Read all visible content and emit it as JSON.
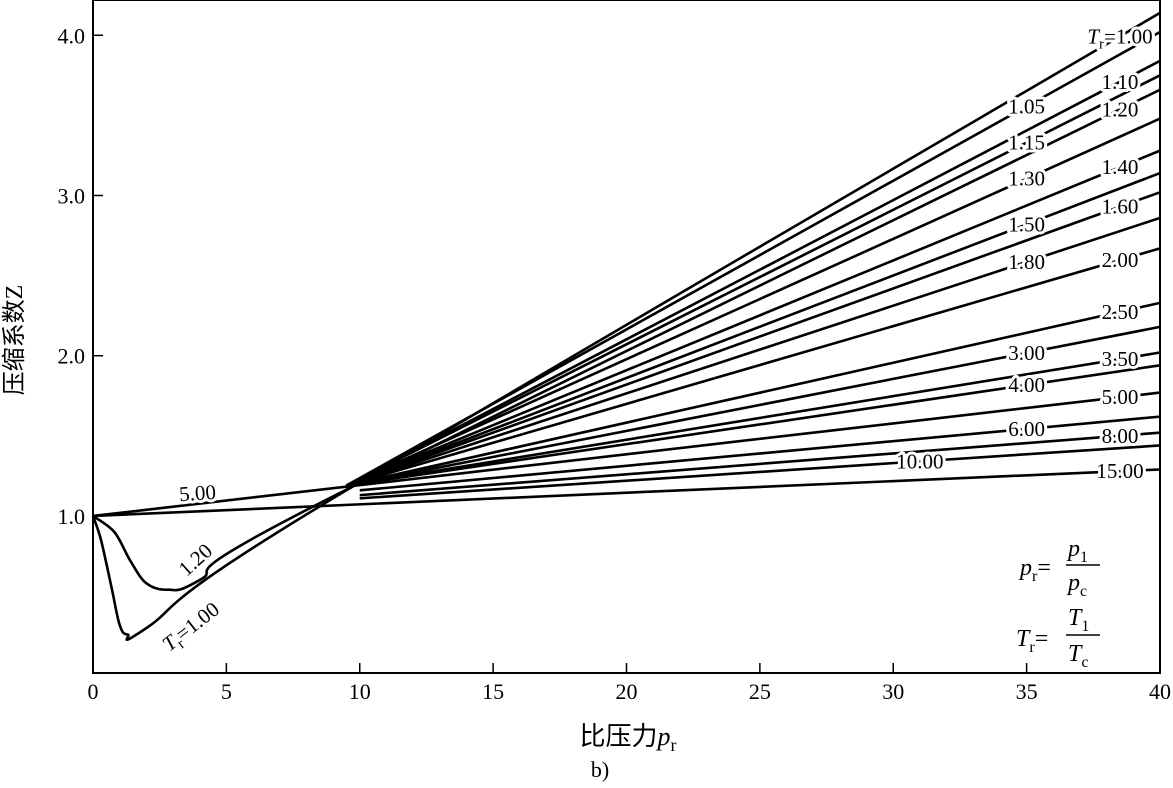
{
  "chart_data": {
    "type": "line",
    "title": "",
    "xlabel": "比压力p_r",
    "xlabel_main": "比压力",
    "xlabel_var": "p",
    "xlabel_sub": "r",
    "ylabel": "压缩系数Z",
    "caption": "b)",
    "xlim": [
      0,
      40
    ],
    "ylim": [
      0.02,
      4.22
    ],
    "xticks": [
      "0",
      "5",
      "10",
      "15",
      "20",
      "25",
      "30",
      "35",
      "40"
    ],
    "yticks": [
      "1.0",
      "2.0",
      "3.0",
      "4.0"
    ],
    "grid": false,
    "legend": "none",
    "line_color": "#000000",
    "formulas": [
      {
        "lhs": "p",
        "lhs_sub": "r",
        "eq": "=",
        "num": "p",
        "num_sub": "1",
        "den": "p",
        "den_sub": "c"
      },
      {
        "lhs": "T",
        "lhs_sub": "r",
        "eq": "=",
        "num": "T",
        "num_sub": "1",
        "den": "T",
        "den_sub": "c"
      }
    ],
    "series": [
      {
        "name": "Tr=1.00",
        "label": "1.00",
        "label_prefix": "T",
        "label_prefix_sub": "r",
        "points": [
          [
            0,
            1
          ],
          [
            0.3,
            0.85
          ],
          [
            0.7,
            0.55
          ],
          [
            1.0,
            0.32
          ],
          [
            1.3,
            0.26
          ],
          [
            2.0,
            0.3
          ],
          [
            8.5,
            1.06
          ],
          [
            40,
            4.14
          ]
        ]
      },
      {
        "name": "Tr=1.05",
        "label": "1.05",
        "points": [
          [
            9.5,
            1.19
          ],
          [
            40,
            4.02
          ]
        ]
      },
      {
        "name": "Tr=1.10",
        "label": "1.10",
        "points": [
          [
            9.5,
            1.19
          ],
          [
            40,
            3.84
          ]
        ]
      },
      {
        "name": "Tr=1.15",
        "label": "1.15",
        "points": [
          [
            9.5,
            1.19
          ],
          [
            40,
            3.75
          ]
        ]
      },
      {
        "name": "Tr=1.20",
        "label": "1.20",
        "points": [
          [
            0,
            1
          ],
          [
            0.8,
            0.9
          ],
          [
            1.4,
            0.72
          ],
          [
            2.0,
            0.58
          ],
          [
            2.8,
            0.54
          ],
          [
            4.0,
            0.6
          ],
          [
            8.5,
            1.08
          ],
          [
            40,
            3.66
          ]
        ]
      },
      {
        "name": "Tr=1.30",
        "label": "1.30",
        "points": [
          [
            9.5,
            1.19
          ],
          [
            40,
            3.48
          ]
        ]
      },
      {
        "name": "Tr=1.40",
        "label": "1.40",
        "points": [
          [
            9.5,
            1.19
          ],
          [
            40,
            3.28
          ]
        ]
      },
      {
        "name": "Tr=1.50",
        "label": "1.50",
        "points": [
          [
            9.5,
            1.19
          ],
          [
            40,
            3.14
          ]
        ]
      },
      {
        "name": "Tr=1.60",
        "label": "1.60",
        "points": [
          [
            9.5,
            1.19
          ],
          [
            40,
            3.02
          ]
        ]
      },
      {
        "name": "Tr=1.80",
        "label": "1.80",
        "points": [
          [
            9.5,
            1.19
          ],
          [
            40,
            2.86
          ]
        ]
      },
      {
        "name": "Tr=2.00",
        "label": "2.00",
        "points": [
          [
            9.5,
            1.19
          ],
          [
            40,
            2.67
          ]
        ]
      },
      {
        "name": "Tr=2.50",
        "label": "2.50",
        "points": [
          [
            9.5,
            1.19
          ],
          [
            40,
            2.33
          ]
        ]
      },
      {
        "name": "Tr=3.00",
        "label": "3.00",
        "points": [
          [
            9.5,
            1.19
          ],
          [
            40,
            2.18
          ]
        ]
      },
      {
        "name": "Tr=3.50",
        "label": "3.50",
        "points": [
          [
            9.5,
            1.19
          ],
          [
            40,
            2.02
          ]
        ]
      },
      {
        "name": "Tr=4.00",
        "label": "4.00",
        "points": [
          [
            9.5,
            1.19
          ],
          [
            40,
            1.94
          ]
        ]
      },
      {
        "name": "Tr=5.00",
        "label": "5.00",
        "points": [
          [
            0,
            1
          ],
          [
            40,
            1.77
          ]
        ]
      },
      {
        "name": "Tr=6.00",
        "label": "6.00",
        "points": [
          [
            10,
            1.16
          ],
          [
            40,
            1.62
          ]
        ]
      },
      {
        "name": "Tr=8.00",
        "label": "8.00",
        "points": [
          [
            10,
            1.13
          ],
          [
            40,
            1.52
          ]
        ]
      },
      {
        "name": "Tr=10.00",
        "label": "10.00",
        "points": [
          [
            10,
            1.11
          ],
          [
            40,
            1.44
          ]
        ]
      },
      {
        "name": "Tr=15.00",
        "label": "15.00",
        "points": [
          [
            0,
            1
          ],
          [
            40,
            1.29
          ]
        ]
      }
    ],
    "left_labels": [
      {
        "series": "Tr=5.00",
        "label": "5.00"
      },
      {
        "series": "Tr=1.20",
        "label": "1.20"
      },
      {
        "series": "Tr=1.00",
        "label": "1.00",
        "label_prefix": "T",
        "label_prefix_sub": "r"
      }
    ]
  }
}
